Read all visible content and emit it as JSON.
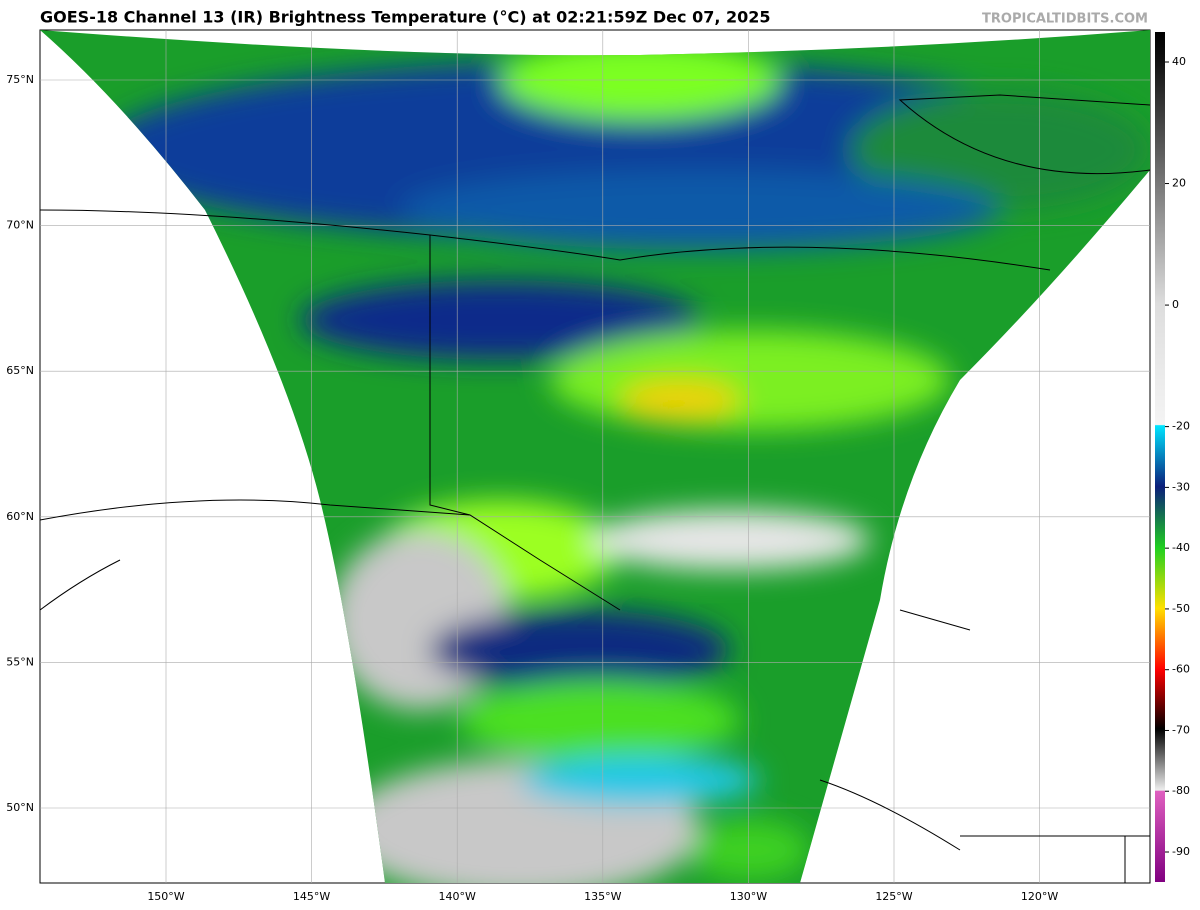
{
  "header": {
    "title": "GOES-18 Channel 13 (IR) Brightness Temperature (°C) at 02:21:59Z Dec 07, 2025",
    "watermark": "TROPICALTIDBITS.COM"
  },
  "map": {
    "lat_labels": [
      "75°N",
      "70°N",
      "65°N",
      "60°N",
      "55°N",
      "50°N"
    ],
    "lon_labels": [
      "150°W",
      "145°W",
      "140°W",
      "135°W",
      "130°W",
      "125°W",
      "120°W"
    ]
  },
  "colorbar": {
    "ticks": [
      40,
      20,
      0,
      -20,
      -30,
      -40,
      -50,
      -60,
      -70,
      -80,
      -90
    ]
  }
}
